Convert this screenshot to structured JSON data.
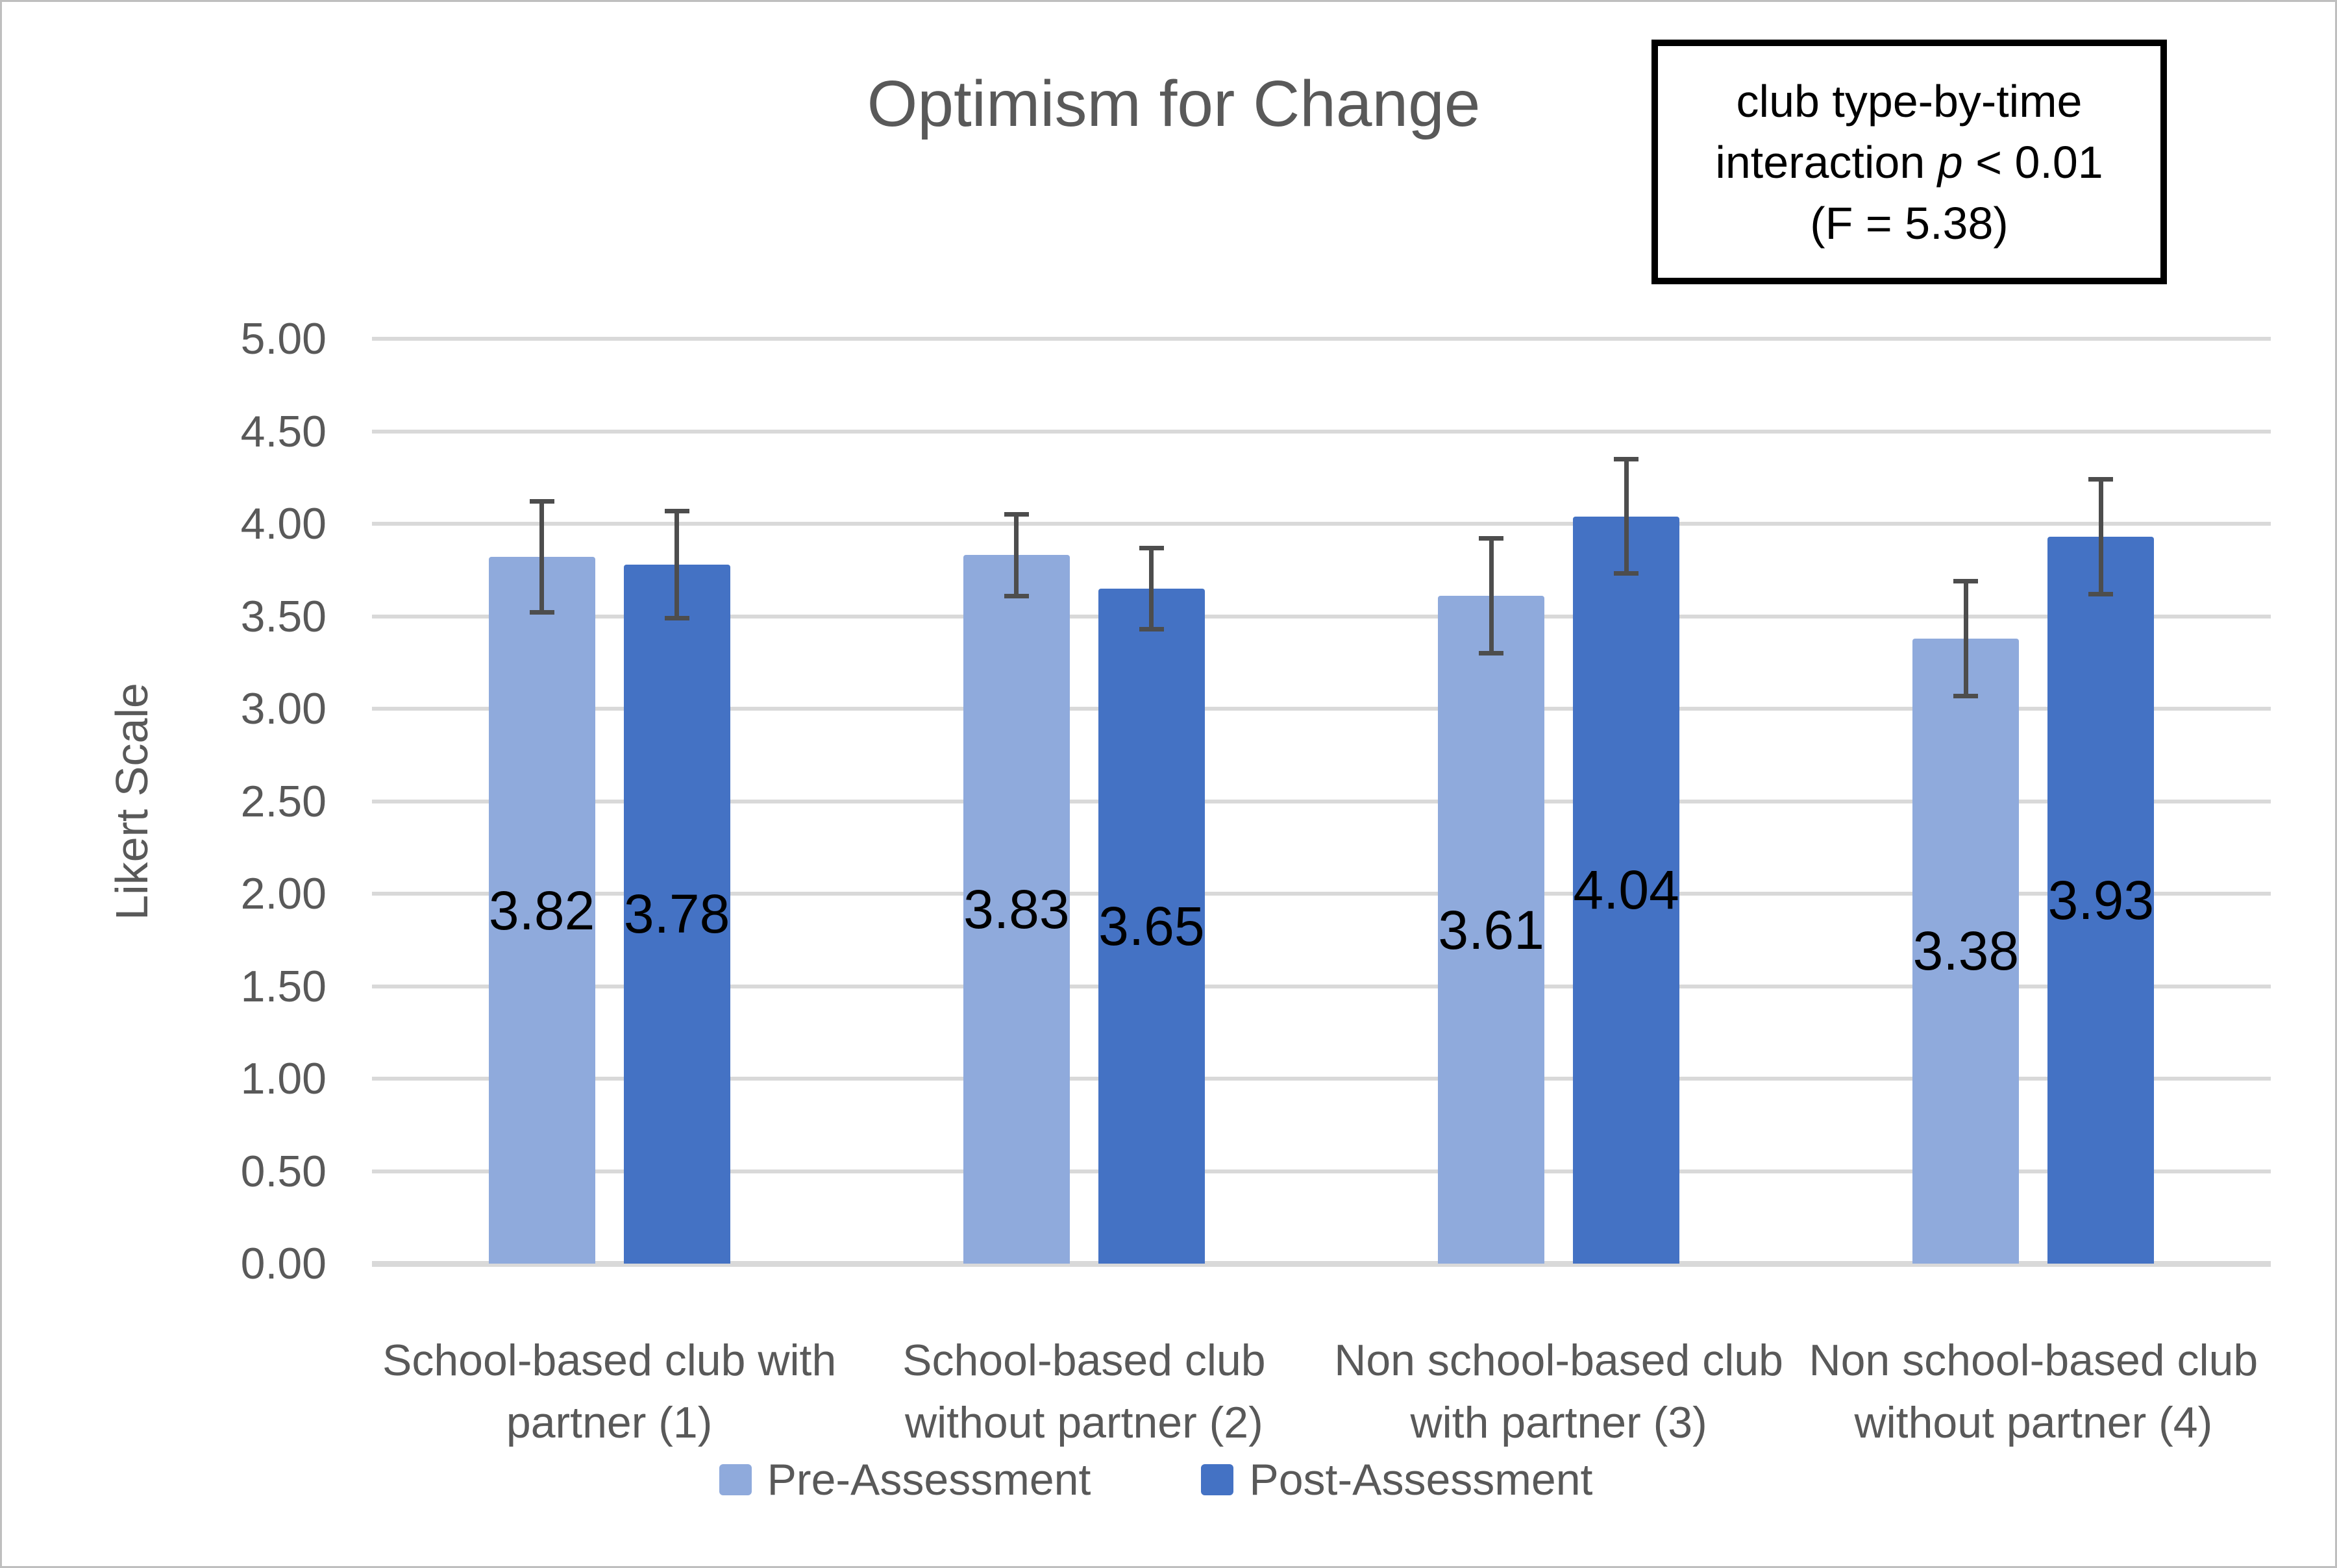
{
  "title": "Optimism for Change",
  "annotation_box": {
    "line1": "club type-by-time",
    "line2_prefix": "interaction ",
    "line2_italic": "p",
    "line2_suffix": " < 0.01",
    "line3": "(F = 5.38)"
  },
  "y_axis": {
    "title": "Likert Scale",
    "tick_labels": [
      "5.00",
      "4.50",
      "4.00",
      "3.50",
      "3.00",
      "2.50",
      "2.00",
      "1.50",
      "1.00",
      "0.50",
      "0.00"
    ]
  },
  "legend": {
    "items": [
      {
        "label": "Pre-Assessment"
      },
      {
        "label": "Post-Assessment"
      }
    ]
  },
  "colors": {
    "pre_series": "#8FAADC",
    "post_series": "#4472C4",
    "gridline": "#D9D9D9",
    "axis_line": "#D9D9D9",
    "axis_text": "#595959",
    "error_bar": "#4D4D4D",
    "data_label": "#000000",
    "frame_border": "#BFBFBF",
    "annotation_border": "#000000"
  },
  "chart_data": {
    "type": "bar",
    "title": "Optimism for Change",
    "xlabel": "",
    "ylabel": "Likert Scale",
    "ylim": [
      0,
      5
    ],
    "ytick_step": 0.5,
    "grid": true,
    "legend_position": "bottom",
    "categories": [
      "School-based club with partner (1)",
      "School-based club without partner (2)",
      "Non school-based club with partner (3)",
      "Non school-based club without partner (4)"
    ],
    "category_lines": [
      [
        "School-based club with",
        "partner (1)"
      ],
      [
        "School-based club",
        "without partner (2)"
      ],
      [
        "Non school-based club",
        "with partner (3)"
      ],
      [
        "Non school-based club",
        "without partner (4)"
      ]
    ],
    "series": [
      {
        "name": "Pre-Assessment",
        "color": "#8FAADC",
        "values": [
          3.82,
          3.83,
          3.61,
          3.38
        ],
        "error": [
          0.3,
          0.22,
          0.31,
          0.31
        ]
      },
      {
        "name": "Post-Assessment",
        "color": "#4472C4",
        "values": [
          3.78,
          3.65,
          4.04,
          3.93
        ],
        "error": [
          0.29,
          0.22,
          0.31,
          0.31
        ]
      }
    ],
    "data_label_position": "center-of-bar",
    "error_bars": "both-directions-with-caps",
    "annotation": "club type-by-time interaction p < 0.01 (F = 5.38)"
  }
}
